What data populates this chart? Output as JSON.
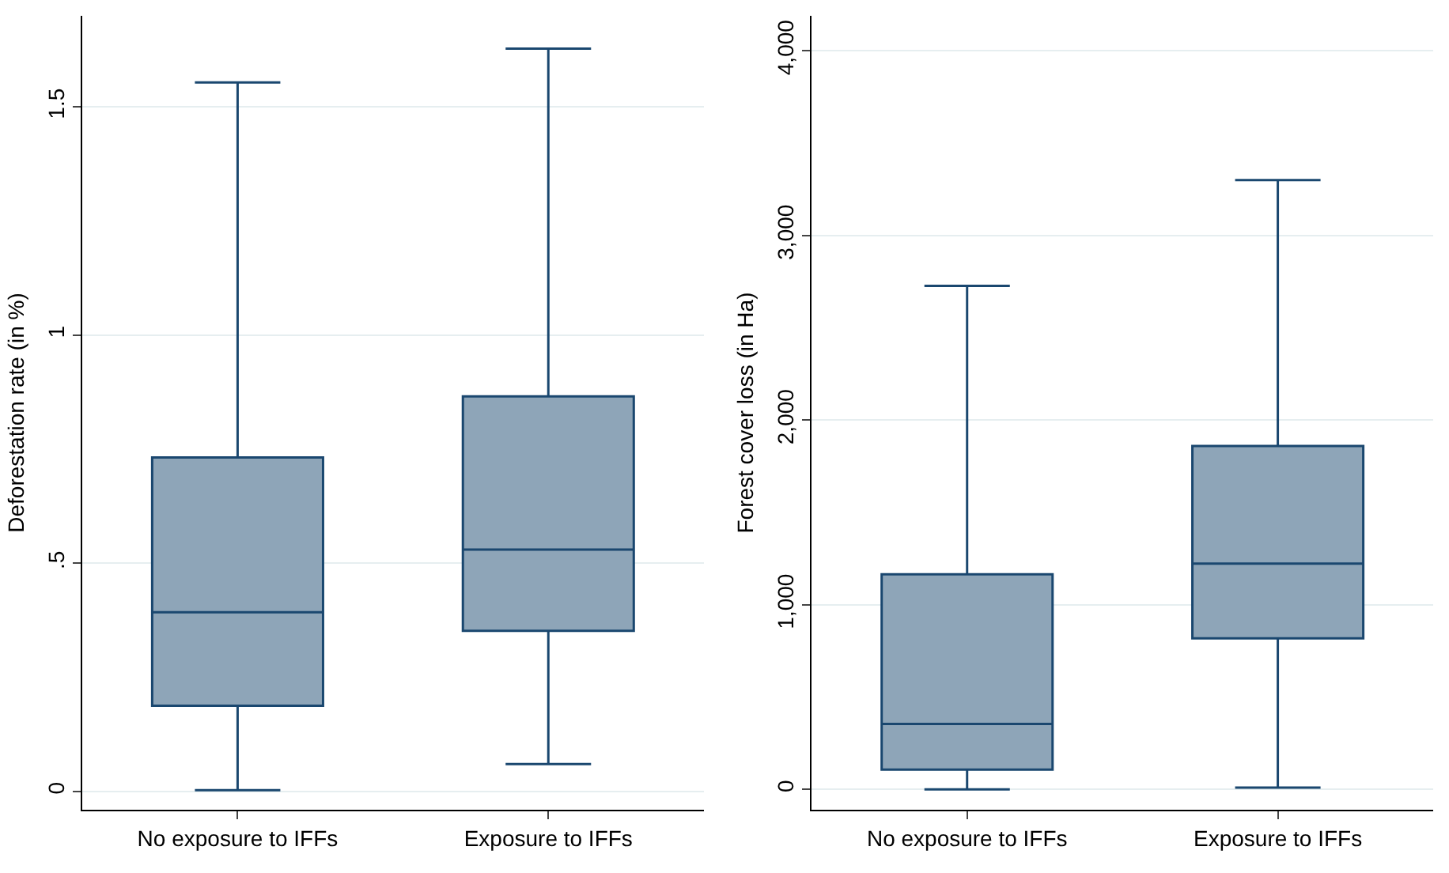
{
  "chart_data": [
    {
      "type": "box",
      "ylabel": "Deforestation rate (in %)",
      "categories": [
        "No exposure to IFFs",
        "Exposure to IFFs"
      ],
      "ylim": [
        -0.04,
        1.7
      ],
      "yticks": [
        0,
        {
          "value": 0.5,
          "label": ".5"
        },
        1,
        1.5
      ],
      "grid": "y",
      "color": "#8ea5b8",
      "boxes": [
        {
          "low": 0.003,
          "q1": 0.188,
          "median": 0.393,
          "q3": 0.732,
          "high": 1.554
        },
        {
          "low": 0.06,
          "q1": 0.352,
          "median": 0.53,
          "q3": 0.866,
          "high": 1.628
        }
      ]
    },
    {
      "type": "box",
      "ylabel": "Forest cover loss (in Ha)",
      "categories": [
        "No exposure to IFFs",
        "Exposure to IFFs"
      ],
      "ylim": [
        -110,
        4190
      ],
      "yticks": [
        {
          "value": 0,
          "label": "0"
        },
        {
          "value": 1000,
          "label": "1,000"
        },
        {
          "value": 2000,
          "label": "2,000"
        },
        {
          "value": 3000,
          "label": "3,000"
        },
        {
          "value": 4000,
          "label": "4,000"
        }
      ],
      "grid": "y",
      "color": "#8ea5b8",
      "boxes": [
        {
          "low": 0,
          "q1": 107,
          "median": 355,
          "q3": 1165,
          "high": 2727
        },
        {
          "low": 10,
          "q1": 818,
          "median": 1223,
          "q3": 1860,
          "high": 3300
        }
      ]
    }
  ]
}
